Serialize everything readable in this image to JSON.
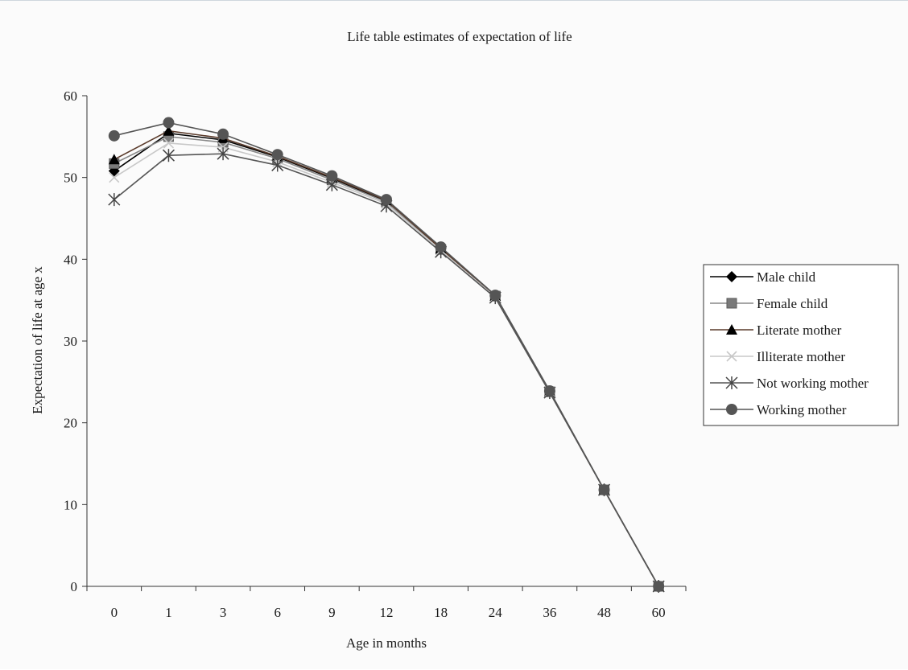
{
  "chart_data": {
    "type": "line",
    "title": "Life table estimates of expectation of life",
    "xlabel": "Age in months",
    "ylabel": "Expectation of life at age x",
    "categories": [
      "0",
      "1",
      "3",
      "6",
      "9",
      "12",
      "18",
      "24",
      "36",
      "48",
      "60"
    ],
    "ylim": [
      0,
      60
    ],
    "yticks": [
      "0",
      "10",
      "20",
      "30",
      "40",
      "50",
      "60"
    ],
    "grid": false,
    "legend_position": "right",
    "series": [
      {
        "name": "Male child",
        "marker": "diamond",
        "color": "#000000",
        "values": [
          50.8,
          55.4,
          54.6,
          52.5,
          49.9,
          47.1,
          41.3,
          35.5,
          23.8,
          11.8,
          0
        ]
      },
      {
        "name": "Female child",
        "marker": "square",
        "color": "#888888",
        "values": [
          51.7,
          55.0,
          54.3,
          52.3,
          49.7,
          47.0,
          41.2,
          35.5,
          23.8,
          11.8,
          0
        ]
      },
      {
        "name": "Literate mother",
        "marker": "triangle",
        "color": "#5a3a2a",
        "values": [
          52.2,
          55.7,
          54.8,
          52.6,
          50.0,
          47.2,
          41.3,
          35.5,
          23.8,
          11.8,
          0
        ]
      },
      {
        "name": "Illiterate mother",
        "marker": "x",
        "color": "#c8c8c8",
        "values": [
          50.0,
          54.2,
          53.7,
          51.9,
          49.4,
          46.8,
          41.1,
          35.4,
          23.8,
          11.8,
          0
        ]
      },
      {
        "name": "Not working mother",
        "marker": "star",
        "color": "#555555",
        "values": [
          47.3,
          52.7,
          52.9,
          51.5,
          49.1,
          46.5,
          40.9,
          35.3,
          23.7,
          11.8,
          0
        ]
      },
      {
        "name": "Working mother",
        "marker": "circle",
        "color": "#555555",
        "values": [
          55.1,
          56.7,
          55.3,
          52.8,
          50.2,
          47.3,
          41.5,
          35.6,
          23.9,
          11.8,
          0
        ]
      }
    ]
  }
}
